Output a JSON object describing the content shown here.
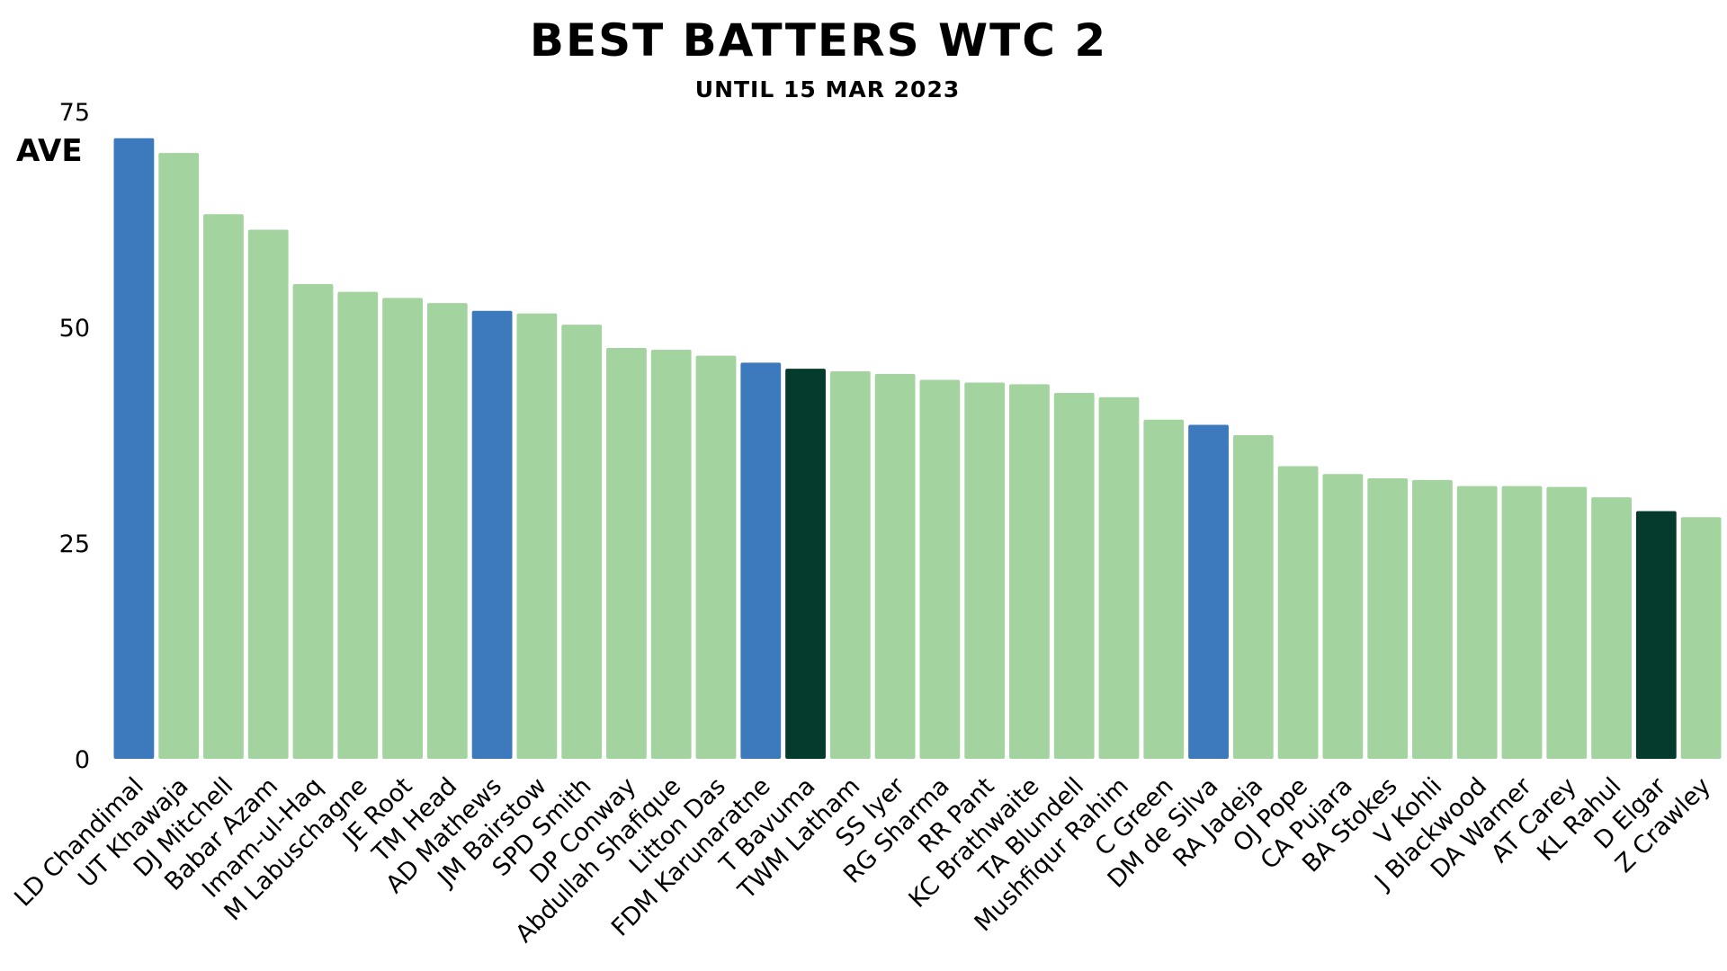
{
  "chart_data": {
    "type": "bar",
    "title": "BEST BATTERS WTC 2",
    "subtitle": "UNTIL 15 MAR 2023",
    "ylabel": "AVE",
    "xlabel": "",
    "ylim": [
      0,
      75
    ],
    "yticks": [
      0,
      25,
      50,
      75
    ],
    "grid": false,
    "categories": [
      "LD Chandimal",
      "UT Khawaja",
      "DJ Mitchell",
      "Babar Azam",
      "Imam-ul-Haq",
      "M Labuschagne",
      "JE Root",
      "TM Head",
      "AD Mathews",
      "JM Bairstow",
      "SPD Smith",
      "DP Conway",
      "Abdullah Shafique",
      "Litton Das",
      "FDM Karunaratne",
      "T Bavuma",
      "TWM Latham",
      "SS Iyer",
      "RG Sharma",
      "RR Pant",
      "KC Brathwaite",
      "TA Blundell",
      "Mushfiqur Rahim",
      "C Green",
      "DM de Silva",
      "RA Jadeja",
      "OJ Pope",
      "CA Pujara",
      "BA Stokes",
      "V Kohli",
      "J Blackwood",
      "DA Warner",
      "AT Carey",
      "KL Rahul",
      "D Elgar",
      "Z Crawley"
    ],
    "values": [
      71.9,
      70.2,
      63.1,
      61.3,
      55.0,
      54.1,
      53.4,
      52.8,
      51.9,
      51.6,
      50.3,
      47.6,
      47.4,
      46.7,
      45.9,
      45.2,
      44.9,
      44.6,
      43.9,
      43.6,
      43.4,
      42.4,
      41.9,
      39.3,
      38.7,
      37.5,
      33.9,
      33.0,
      32.5,
      32.3,
      31.6,
      31.6,
      31.5,
      30.3,
      28.7,
      28.0
    ],
    "bar_colors": [
      "#3c79bd",
      "#a3d49f",
      "#a3d49f",
      "#a3d49f",
      "#a3d49f",
      "#a3d49f",
      "#a3d49f",
      "#a3d49f",
      "#3c79bd",
      "#a3d49f",
      "#a3d49f",
      "#a3d49f",
      "#a3d49f",
      "#a3d49f",
      "#3c79bd",
      "#053b2c",
      "#a3d49f",
      "#a3d49f",
      "#a3d49f",
      "#a3d49f",
      "#a3d49f",
      "#a3d49f",
      "#a3d49f",
      "#a3d49f",
      "#3c79bd",
      "#a3d49f",
      "#a3d49f",
      "#a3d49f",
      "#a3d49f",
      "#a3d49f",
      "#a3d49f",
      "#a3d49f",
      "#a3d49f",
      "#a3d49f",
      "#053b2c",
      "#a3d49f"
    ]
  }
}
